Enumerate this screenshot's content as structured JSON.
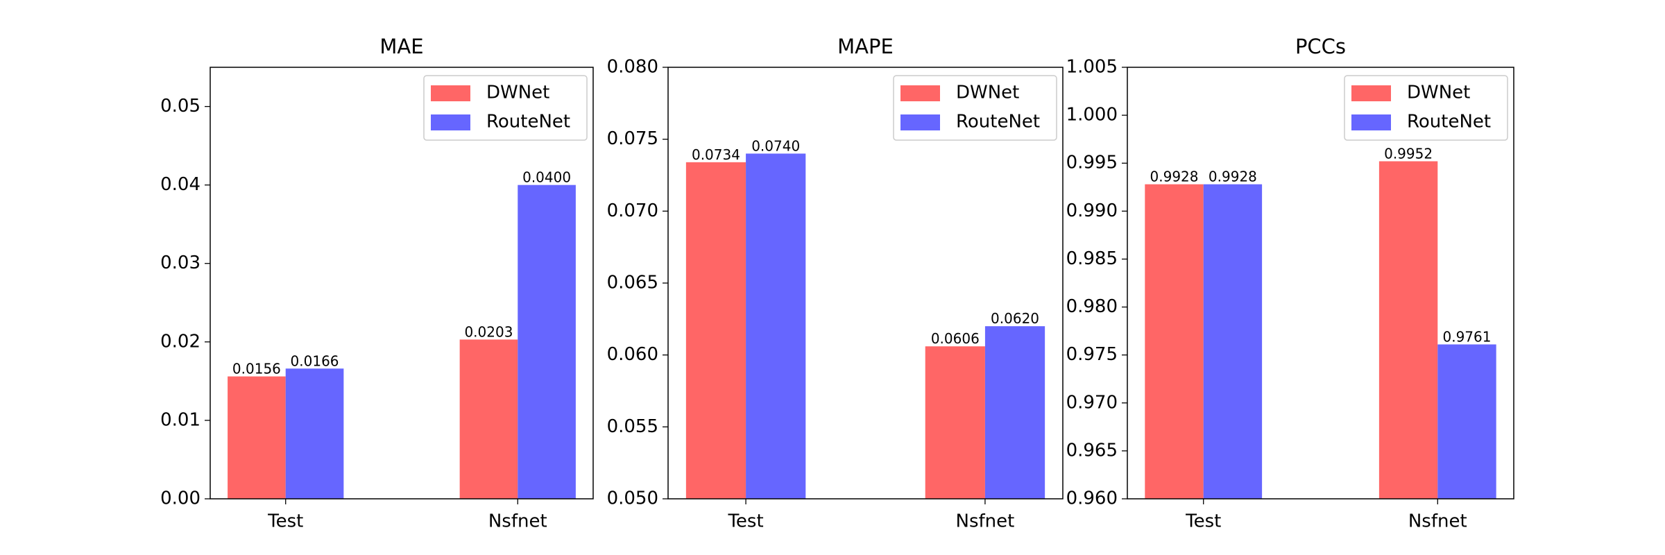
{
  "chart_data": [
    {
      "type": "bar",
      "title": "MAE",
      "categories": [
        "Test",
        "Nsfnet"
      ],
      "series": [
        {
          "name": "DWNet",
          "color": "#ff6666",
          "values": [
            0.0156,
            0.0203
          ]
        },
        {
          "name": "RouteNet",
          "color": "#6666ff",
          "values": [
            0.0166,
            0.04
          ],
          "value_labels": [
            "0.0166",
            "0.0400"
          ]
        }
      ],
      "ylim": [
        0,
        0.055
      ],
      "yticks": [
        {
          "value": 0,
          "label": "0.00"
        },
        0.01,
        0.02,
        0.03,
        0.04,
        0.05
      ],
      "legend": "upper right"
    },
    {
      "type": "bar",
      "title": "MAPE",
      "categories": [
        "Test",
        "Nsfnet"
      ],
      "series": [
        {
          "name": "DWNet",
          "color": "#ff6666",
          "values": [
            0.0734,
            0.0606
          ]
        },
        {
          "name": "RouteNet",
          "color": "#6666ff",
          "values": [
            0.074,
            0.062
          ],
          "value_labels": [
            "0.0740",
            "0.0620"
          ]
        }
      ],
      "ylim": [
        0.05,
        0.08
      ],
      "yticks": [
        {
          "value": 0.05,
          "label": "0.050"
        },
        0.055,
        {
          "value": 0.06,
          "label": "0.060"
        },
        0.065,
        {
          "value": 0.07,
          "label": "0.070"
        },
        0.075,
        {
          "value": 0.08,
          "label": "0.080"
        }
      ],
      "legend": "upper right"
    },
    {
      "type": "bar",
      "title": "PCCs",
      "categories": [
        "Test",
        "Nsfnet"
      ],
      "series": [
        {
          "name": "DWNet",
          "color": "#ff6666",
          "values": [
            0.9928,
            0.9952
          ]
        },
        {
          "name": "RouteNet",
          "color": "#6666ff",
          "values": [
            0.9928,
            0.9761
          ]
        }
      ],
      "ylim": [
        0.96,
        1.005
      ],
      "yticks": [
        {
          "value": 0.96,
          "label": "0.960"
        },
        0.965,
        {
          "value": 0.97,
          "label": "0.970"
        },
        0.975,
        {
          "value": 0.98,
          "label": "0.980"
        },
        0.985,
        {
          "value": 0.99,
          "label": "0.990"
        },
        0.995,
        {
          "value": 1,
          "label": "1.000"
        },
        1.005
      ],
      "legend": "upper right"
    }
  ]
}
